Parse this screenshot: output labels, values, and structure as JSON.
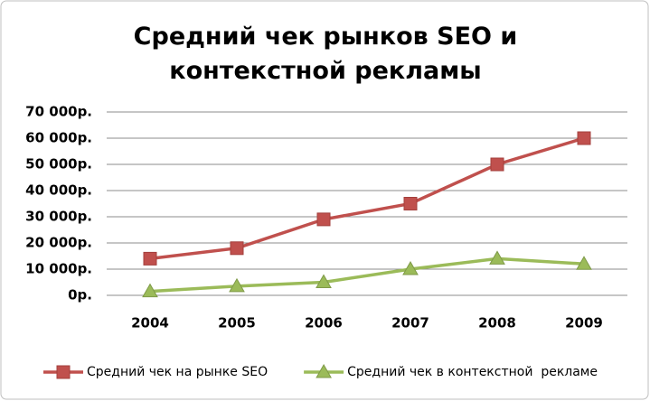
{
  "chart_data": {
    "type": "line",
    "title": "Средний чек рынков SEO и контекстной рекламы",
    "categories": [
      "2004",
      "2005",
      "2006",
      "2007",
      "2008",
      "2009"
    ],
    "series": [
      {
        "name": "Средний чек на рынке SEO",
        "color": "#c0504d",
        "marker": "square",
        "values": [
          14000,
          18000,
          29000,
          35000,
          50000,
          60000
        ]
      },
      {
        "name": "Средний чек в контекстной  рекламе",
        "color": "#9bbb59",
        "marker": "triangle",
        "values": [
          1500,
          3500,
          5000,
          10000,
          14000,
          12000
        ]
      }
    ],
    "ylim": [
      0,
      70000
    ],
    "yticks": [
      {
        "value": 0,
        "label": "0р."
      },
      {
        "value": 10000,
        "label": "10 000р."
      },
      {
        "value": 20000,
        "label": "20 000р."
      },
      {
        "value": 30000,
        "label": "30 000р."
      },
      {
        "value": 40000,
        "label": "40 000р."
      },
      {
        "value": 50000,
        "label": "50 000р."
      },
      {
        "value": 60000,
        "label": "60 000р."
      },
      {
        "value": 70000,
        "label": "70 000р."
      }
    ],
    "grid": true,
    "legend": "bottom"
  }
}
